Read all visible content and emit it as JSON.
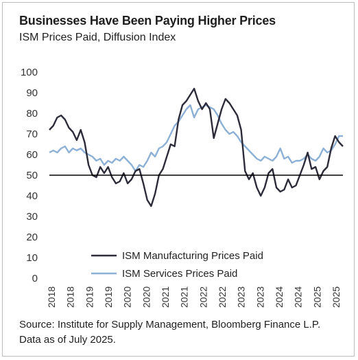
{
  "title": "Businesses Have Been Paying Higher Prices",
  "subtitle": "ISM Prices Paid, Diffusion Index",
  "source": "Source: Institute for Supply Management, Bloomberg Finance L.P. Data as of July 2025.",
  "chart_data": {
    "type": "line",
    "ylim": [
      0,
      100
    ],
    "yticks": [
      0,
      10,
      20,
      30,
      40,
      50,
      60,
      70,
      80,
      90,
      100
    ],
    "xlim": [
      2018.0,
      2025.5
    ],
    "xtick_labels": [
      "2018",
      "2018",
      "2019",
      "2019",
      "2020",
      "2020",
      "2021",
      "2021",
      "2022",
      "2022",
      "2023",
      "2023",
      "2024",
      "2024",
      "2025",
      "2025"
    ],
    "reference_line": 50,
    "grid": false,
    "legend_position": "bottom-center",
    "series": [
      {
        "name": "ISM Manufacturing Prices Paid",
        "color": "#2b2b3a",
        "x": [
          2018.0,
          2018.1,
          2018.2,
          2018.3,
          2018.4,
          2018.5,
          2018.6,
          2018.7,
          2018.8,
          2018.9,
          2019.0,
          2019.1,
          2019.2,
          2019.3,
          2019.4,
          2019.5,
          2019.6,
          2019.7,
          2019.8,
          2019.9,
          2020.0,
          2020.1,
          2020.2,
          2020.3,
          2020.4,
          2020.5,
          2020.6,
          2020.7,
          2020.8,
          2020.9,
          2021.0,
          2021.1,
          2021.2,
          2021.3,
          2021.4,
          2021.5,
          2021.6,
          2021.7,
          2021.8,
          2021.9,
          2022.0,
          2022.1,
          2022.2,
          2022.3,
          2022.4,
          2022.5,
          2022.6,
          2022.7,
          2022.8,
          2022.9,
          2023.0,
          2023.1,
          2023.2,
          2023.3,
          2023.4,
          2023.5,
          2023.6,
          2023.7,
          2023.8,
          2023.9,
          2024.0,
          2024.1,
          2024.2,
          2024.3,
          2024.4,
          2024.5,
          2024.6,
          2024.7,
          2024.8,
          2024.9,
          2025.0,
          2025.1,
          2025.2,
          2025.3,
          2025.4,
          2025.5
        ],
        "values": [
          72,
          74,
          78,
          79,
          77,
          73,
          71,
          67,
          72,
          66,
          55,
          50,
          49,
          54,
          51,
          54,
          49,
          46,
          47,
          51,
          46,
          48,
          52,
          53,
          46,
          38,
          35,
          41,
          50,
          53,
          59,
          65,
          64,
          77,
          84,
          86,
          89,
          92,
          86,
          82,
          85,
          82,
          68,
          75,
          82,
          87,
          85,
          82,
          79,
          72,
          52,
          48,
          51,
          44,
          40,
          44,
          51,
          53,
          44,
          42,
          43,
          48,
          44,
          45,
          50,
          55,
          61,
          53,
          54,
          48,
          52,
          54,
          63,
          69,
          66,
          64
        ]
      },
      {
        "name": "ISM Services Prices Paid",
        "color": "#8cb0d6",
        "x": [
          2018.0,
          2018.1,
          2018.2,
          2018.3,
          2018.4,
          2018.5,
          2018.6,
          2018.7,
          2018.8,
          2018.9,
          2019.0,
          2019.1,
          2019.2,
          2019.3,
          2019.4,
          2019.5,
          2019.6,
          2019.7,
          2019.8,
          2019.9,
          2020.0,
          2020.1,
          2020.2,
          2020.3,
          2020.4,
          2020.5,
          2020.6,
          2020.7,
          2020.8,
          2020.9,
          2021.0,
          2021.1,
          2021.2,
          2021.3,
          2021.4,
          2021.5,
          2021.6,
          2021.7,
          2021.8,
          2021.9,
          2022.0,
          2022.1,
          2022.2,
          2022.3,
          2022.4,
          2022.5,
          2022.6,
          2022.7,
          2022.8,
          2022.9,
          2023.0,
          2023.1,
          2023.2,
          2023.3,
          2023.4,
          2023.5,
          2023.6,
          2023.7,
          2023.8,
          2023.9,
          2024.0,
          2024.1,
          2024.2,
          2024.3,
          2024.4,
          2024.5,
          2024.6,
          2024.7,
          2024.8,
          2024.9,
          2025.0,
          2025.1,
          2025.2,
          2025.3,
          2025.4,
          2025.5
        ],
        "values": [
          61,
          62,
          61,
          63,
          64,
          61,
          63,
          62,
          63,
          61,
          60,
          59,
          57,
          58,
          55,
          57,
          56,
          58,
          57,
          59,
          57,
          55,
          52,
          55,
          54,
          57,
          61,
          59,
          63,
          64,
          66,
          70,
          74,
          76,
          79,
          82,
          84,
          78,
          82,
          83,
          84,
          83,
          82,
          79,
          75,
          72,
          70,
          71,
          69,
          66,
          64,
          62,
          60,
          58,
          57,
          59,
          58,
          57,
          59,
          63,
          58,
          59,
          56,
          57,
          57,
          58,
          60,
          58,
          57,
          59,
          63,
          61,
          62,
          65,
          69,
          69
        ]
      }
    ]
  }
}
